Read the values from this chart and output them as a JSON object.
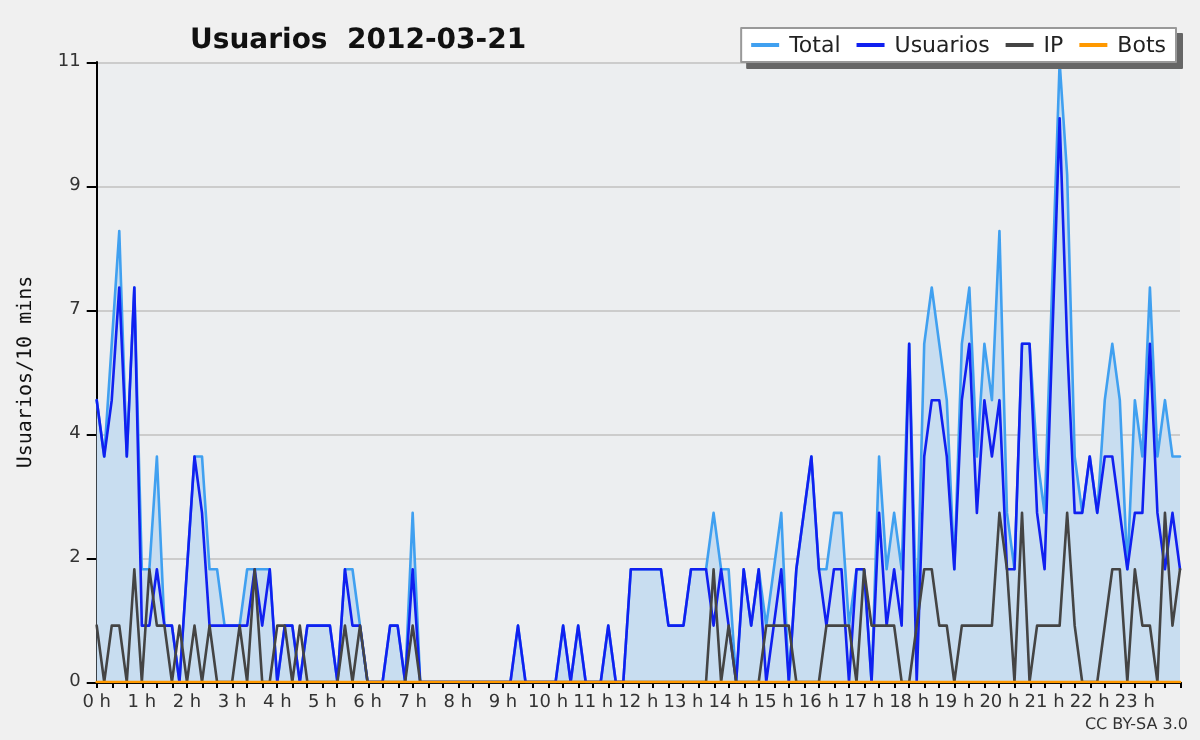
{
  "chart_data": {
    "type": "line",
    "title": "Usuarios  2012-03-21",
    "ylabel": "Usuarios/10 mins",
    "annotations": [
      "CC BY-SA 3.0"
    ],
    "categories": [
      "0 h",
      null,
      null,
      null,
      null,
      null,
      "1 h",
      null,
      null,
      null,
      null,
      null,
      "2 h",
      null,
      null,
      null,
      null,
      null,
      "3 h",
      null,
      null,
      null,
      null,
      null,
      "4 h",
      null,
      null,
      null,
      null,
      null,
      "5 h",
      null,
      null,
      null,
      null,
      null,
      "6 h",
      null,
      null,
      null,
      null,
      null,
      "7 h",
      null,
      null,
      null,
      null,
      null,
      "8 h",
      null,
      null,
      null,
      null,
      null,
      "9 h",
      null,
      null,
      null,
      null,
      null,
      "10 h",
      null,
      null,
      null,
      null,
      null,
      "11 h",
      null,
      null,
      null,
      null,
      null,
      "12 h",
      null,
      null,
      null,
      null,
      null,
      "13 h",
      null,
      null,
      null,
      null,
      null,
      "14 h",
      null,
      null,
      null,
      null,
      null,
      "15 h",
      null,
      null,
      null,
      null,
      null,
      "16 h",
      null,
      null,
      null,
      null,
      null,
      "17 h",
      null,
      null,
      null,
      null,
      null,
      "18 h",
      null,
      null,
      null,
      null,
      null,
      "19 h",
      null,
      null,
      null,
      null,
      null,
      "20 h",
      null,
      null,
      null,
      null,
      null,
      "21 h",
      null,
      null,
      null,
      null,
      null,
      "22 h",
      null,
      null,
      null,
      null,
      null,
      "23 h",
      null,
      null,
      null,
      null,
      null,
      null
    ],
    "series": [
      {
        "name": "Total",
        "type": "area",
        "color": "#40a0f0",
        "values": [
          5,
          4,
          6,
          8,
          4,
          7,
          2,
          2,
          4,
          1,
          1,
          0,
          2,
          4,
          4,
          2,
          2,
          1,
          1,
          1,
          2,
          2,
          2,
          2,
          0,
          1,
          1,
          0,
          1,
          1,
          1,
          1,
          0,
          2,
          2,
          1,
          0,
          0,
          0,
          1,
          1,
          0,
          3,
          0,
          0,
          0,
          0,
          0,
          0,
          0,
          0,
          0,
          0,
          0,
          0,
          0,
          1,
          0,
          0,
          0,
          0,
          0,
          1,
          0,
          1,
          0,
          0,
          0,
          1,
          0,
          0,
          2,
          2,
          2,
          2,
          2,
          1,
          1,
          1,
          2,
          2,
          2,
          3,
          2,
          2,
          0,
          2,
          1,
          2,
          1,
          2,
          3,
          0,
          2,
          3,
          4,
          2,
          2,
          3,
          3,
          1,
          2,
          2,
          0,
          4,
          2,
          3,
          2,
          6,
          1,
          6,
          7,
          6,
          5,
          2,
          6,
          7,
          4,
          6,
          5,
          8,
          3,
          2,
          6,
          6,
          4,
          3,
          7,
          11,
          9,
          4,
          3,
          4,
          3,
          5,
          6,
          5,
          2,
          5,
          4,
          7,
          4,
          5,
          4,
          4
        ]
      },
      {
        "name": "Usuarios",
        "type": "line",
        "color": "#1020f0",
        "values": [
          5,
          4,
          5,
          7,
          4,
          7,
          1,
          1,
          2,
          1,
          1,
          0,
          2,
          4,
          3,
          1,
          1,
          1,
          1,
          1,
          1,
          2,
          1,
          2,
          0,
          1,
          1,
          0,
          1,
          1,
          1,
          1,
          0,
          2,
          1,
          1,
          0,
          0,
          0,
          1,
          1,
          0,
          2,
          0,
          0,
          0,
          0,
          0,
          0,
          0,
          0,
          0,
          0,
          0,
          0,
          0,
          1,
          0,
          0,
          0,
          0,
          0,
          1,
          0,
          1,
          0,
          0,
          0,
          1,
          0,
          0,
          2,
          2,
          2,
          2,
          2,
          1,
          1,
          1,
          2,
          2,
          2,
          1,
          2,
          1,
          0,
          2,
          1,
          2,
          0,
          1,
          2,
          0,
          2,
          3,
          4,
          2,
          1,
          2,
          2,
          0,
          2,
          2,
          0,
          3,
          1,
          2,
          1,
          6,
          0,
          4,
          5,
          5,
          4,
          2,
          5,
          6,
          3,
          5,
          4,
          5,
          2,
          2,
          6,
          6,
          3,
          2,
          6,
          10,
          6,
          3,
          3,
          4,
          3,
          4,
          4,
          3,
          2,
          3,
          3,
          6,
          3,
          2,
          3,
          2
        ]
      },
      {
        "name": "IP",
        "type": "line",
        "color": "#444444",
        "values": [
          1,
          0,
          1,
          1,
          0,
          2,
          0,
          2,
          1,
          1,
          0,
          1,
          0,
          1,
          0,
          1,
          0,
          0,
          0,
          1,
          0,
          2,
          0,
          0,
          1,
          1,
          0,
          1,
          0,
          0,
          0,
          0,
          0,
          1,
          0,
          1,
          0,
          0,
          0,
          0,
          0,
          0,
          1,
          0,
          0,
          0,
          0,
          0,
          0,
          0,
          0,
          0,
          0,
          0,
          0,
          0,
          0,
          0,
          0,
          0,
          0,
          0,
          0,
          0,
          0,
          0,
          0,
          0,
          0,
          0,
          0,
          0,
          0,
          0,
          0,
          0,
          0,
          0,
          0,
          0,
          0,
          0,
          2,
          0,
          1,
          0,
          0,
          0,
          0,
          1,
          1,
          1,
          1,
          0,
          0,
          0,
          0,
          1,
          1,
          1,
          1,
          0,
          2,
          1,
          1,
          1,
          1,
          0,
          0,
          1,
          2,
          2,
          1,
          1,
          0,
          1,
          1,
          1,
          1,
          1,
          3,
          2,
          0,
          3,
          0,
          1,
          1,
          1,
          1,
          3,
          1,
          0,
          0,
          0,
          1,
          2,
          2,
          0,
          2,
          1,
          1,
          0,
          3,
          1,
          2
        ]
      },
      {
        "name": "Bots",
        "type": "line",
        "color": "#ff9900",
        "values": [
          0,
          0,
          0,
          0,
          0,
          0,
          0,
          0,
          0,
          0,
          0,
          0,
          0,
          0,
          0,
          0,
          0,
          0,
          0,
          0,
          0,
          0,
          0,
          0,
          0,
          0,
          0,
          0,
          0,
          0,
          0,
          0,
          0,
          0,
          0,
          0,
          0,
          0,
          0,
          0,
          0,
          0,
          0,
          0,
          0,
          0,
          0,
          0,
          0,
          0,
          0,
          0,
          0,
          0,
          0,
          0,
          0,
          0,
          0,
          0,
          0,
          0,
          0,
          0,
          0,
          0,
          0,
          0,
          0,
          0,
          0,
          0,
          0,
          0,
          0,
          0,
          0,
          0,
          0,
          0,
          0,
          0,
          0,
          0,
          0,
          0,
          0,
          0,
          0,
          0,
          0,
          0,
          0,
          0,
          0,
          0,
          0,
          0,
          0,
          0,
          0,
          0,
          0,
          0,
          0,
          0,
          0,
          0,
          0,
          0,
          0,
          0,
          0,
          0,
          0,
          0,
          0,
          0,
          0,
          0,
          0,
          0,
          0,
          0,
          0,
          0,
          0,
          0,
          0,
          0,
          0,
          0,
          0,
          0,
          0,
          0,
          0,
          0,
          0,
          0,
          0,
          0,
          0,
          0,
          0
        ]
      }
    ],
    "ylim": [
      0,
      11
    ],
    "yticks": [
      0,
      {
        "value": 2.2,
        "label": "2"
      },
      {
        "value": 4.4,
        "label": "4"
      },
      {
        "value": 6.6,
        "label": "7"
      },
      {
        "value": 8.8,
        "label": "9"
      },
      11
    ],
    "grid": "y",
    "legend": "top right",
    "marker": "none",
    "line_style": "solid"
  }
}
